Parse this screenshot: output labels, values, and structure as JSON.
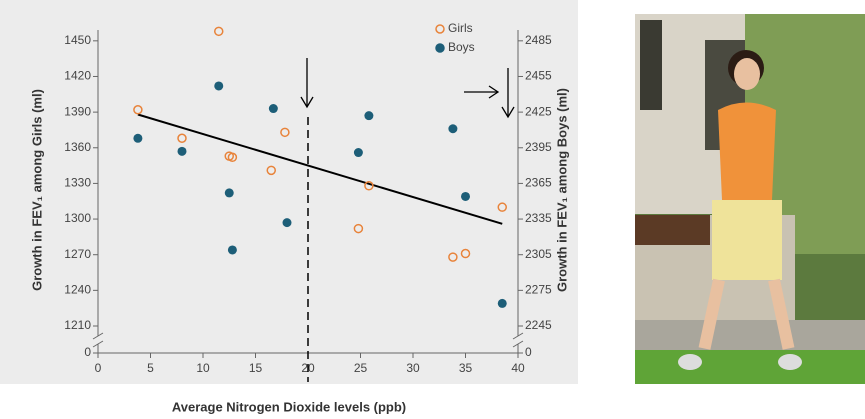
{
  "chart_data": {
    "type": "scatter",
    "x_label": "Average Nitrogen Dioxide levels (ppb)",
    "y_label": "Growth in FEV₁ among Girls (ml)",
    "y2_label": "Growth in FEV₁ among Boys (ml)",
    "xlim": [
      0,
      40
    ],
    "xticks": [
      0,
      5,
      10,
      15,
      20,
      25,
      30,
      35,
      40
    ],
    "ylim": [
      0,
      1465
    ],
    "yticks": [
      0,
      1210,
      1240,
      1270,
      1300,
      1330,
      1360,
      1390,
      1420,
      1450
    ],
    "y2lim": [
      0,
      2500
    ],
    "y2ticks": [
      0,
      2245,
      2275,
      2305,
      2335,
      2365,
      2395,
      2425,
      2455,
      2485
    ],
    "axis_break": true,
    "legend": "upper right",
    "series": [
      {
        "name": "Girls",
        "color": "#e8833a",
        "marker": "open",
        "x": [
          3.8,
          8,
          11.5,
          12.5,
          12.8,
          16.5,
          17.8,
          24.8,
          25.8,
          33.8,
          35,
          38.5
        ],
        "values": [
          1392,
          1368,
          1458,
          1353,
          1352,
          1341,
          1373,
          1292,
          1328,
          1268,
          1271,
          1310
        ]
      },
      {
        "name": "Boys",
        "color": "#1d5e78",
        "marker": "filled",
        "axis": "y2",
        "x": [
          3.8,
          8,
          11.5,
          12.5,
          12.8,
          16.7,
          18,
          24.8,
          25.8,
          33.8,
          35,
          38.5
        ],
        "values": [
          2403,
          2392,
          2447,
          2357,
          2309,
          2428,
          2332,
          2391,
          2422,
          2411,
          2354,
          2264
        ]
      }
    ],
    "trend_line": {
      "color": "#000000",
      "x": [
        3.8,
        38.5
      ],
      "values": [
        1388,
        1296
      ]
    },
    "reference_x": 20
  }
}
